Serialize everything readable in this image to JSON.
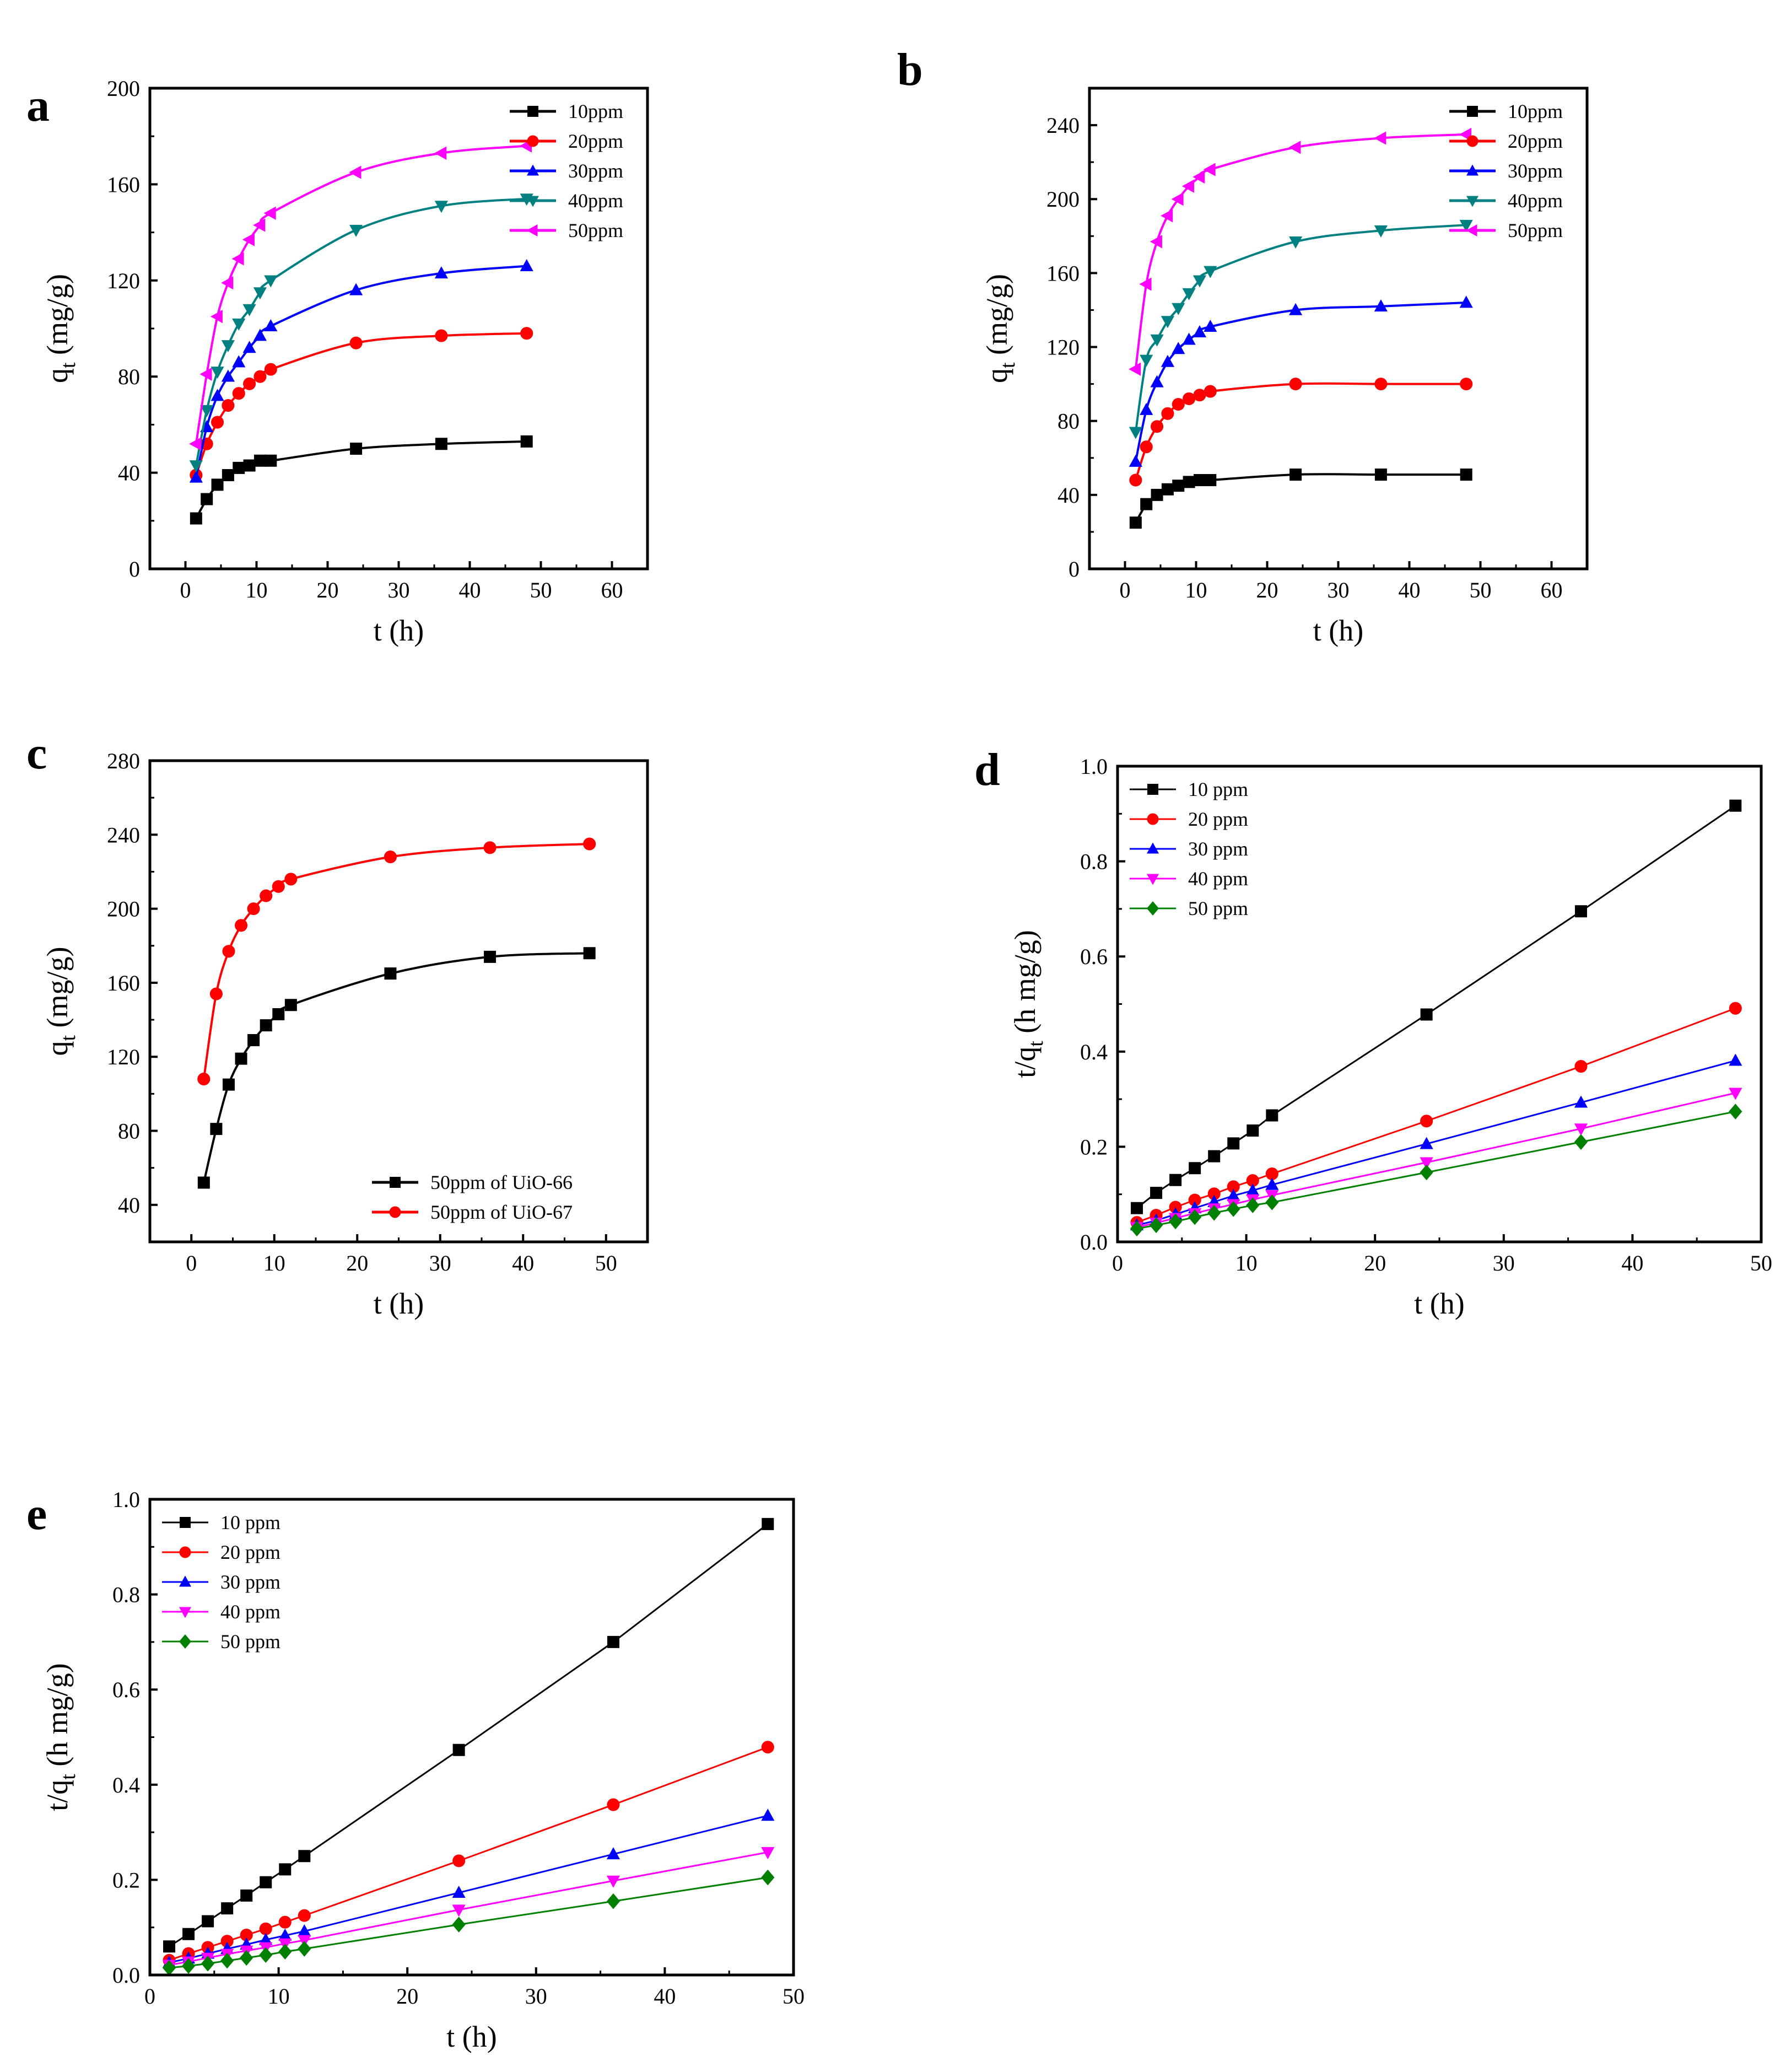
{
  "chart_data": [
    {
      "panel": "a",
      "type": "line",
      "smooth": true,
      "xlabel": "t (h)",
      "ylabel_main": "q",
      "ylabel_sub": "t",
      "ylabel_unit": " (mg/g)",
      "xlim": [
        -5,
        65
      ],
      "ylim": [
        0,
        200
      ],
      "xticks": [
        0,
        10,
        20,
        30,
        40,
        50,
        60
      ],
      "yticks": [
        0,
        40,
        80,
        120,
        160,
        200
      ],
      "legend_position": "top-right",
      "x": [
        1.5,
        3,
        4.5,
        6,
        7.5,
        9,
        10.5,
        12,
        24,
        36,
        48
      ],
      "series": [
        {
          "name": "10ppm",
          "color": "#000000",
          "marker": "square",
          "values": [
            21,
            29,
            35,
            39,
            42,
            43,
            45,
            45,
            50,
            52,
            53
          ]
        },
        {
          "name": "20ppm",
          "color": "#ff0000",
          "marker": "circle",
          "values": [
            39,
            52,
            61,
            68,
            73,
            77,
            80,
            83,
            94,
            97,
            98
          ]
        },
        {
          "name": "30ppm",
          "color": "#0000ff",
          "marker": "triangle-up",
          "values": [
            38,
            59,
            72,
            80,
            86,
            92,
            97,
            101,
            116,
            123,
            126
          ]
        },
        {
          "name": "40ppm",
          "color": "#008080",
          "marker": "triangle-down",
          "values": [
            43,
            66,
            82,
            93,
            102,
            108,
            115,
            120,
            141,
            151,
            154
          ]
        },
        {
          "name": "50ppm",
          "color": "#ff00ff",
          "marker": "triangle-left",
          "values": [
            52,
            81,
            105,
            119,
            129,
            137,
            143,
            148,
            165,
            173,
            176
          ]
        }
      ]
    },
    {
      "panel": "b",
      "type": "line",
      "smooth": true,
      "xlabel": "t (h)",
      "ylabel_main": "q",
      "ylabel_sub": "t",
      "ylabel_unit": " (mg/g)",
      "xlim": [
        -5,
        65
      ],
      "ylim": [
        0,
        260
      ],
      "xticks": [
        0,
        10,
        20,
        30,
        40,
        50,
        60
      ],
      "yticks": [
        0,
        40,
        80,
        120,
        160,
        200,
        240
      ],
      "legend_position": "top-right",
      "x": [
        1.5,
        3,
        4.5,
        6,
        7.5,
        9,
        10.5,
        12,
        24,
        36,
        48
      ],
      "series": [
        {
          "name": "10ppm",
          "color": "#000000",
          "marker": "square",
          "values": [
            25,
            35,
            40,
            43,
            45,
            47,
            48,
            48,
            51,
            51,
            51
          ]
        },
        {
          "name": "20ppm",
          "color": "#ff0000",
          "marker": "circle",
          "values": [
            48,
            66,
            77,
            84,
            89,
            92,
            94,
            96,
            100,
            100,
            100
          ]
        },
        {
          "name": "30ppm",
          "color": "#0000ff",
          "marker": "triangle-up",
          "values": [
            58,
            86,
            101,
            112,
            119,
            124,
            128,
            131,
            140,
            142,
            144
          ]
        },
        {
          "name": "40ppm",
          "color": "#008080",
          "marker": "triangle-down",
          "values": [
            74,
            113,
            124,
            134,
            141,
            149,
            156,
            161,
            177,
            183,
            186
          ]
        },
        {
          "name": "50ppm",
          "color": "#ff00ff",
          "marker": "triangle-left",
          "values": [
            108,
            154,
            177,
            191,
            200,
            207,
            212,
            216,
            228,
            233,
            235
          ]
        }
      ]
    },
    {
      "panel": "c",
      "type": "line",
      "smooth": true,
      "xlabel": "t (h)",
      "ylabel_main": "q",
      "ylabel_sub": "t",
      "ylabel_unit": " (mg/g)",
      "xlim": [
        -5,
        55
      ],
      "ylim": [
        20,
        280
      ],
      "xticks": [
        0,
        10,
        20,
        30,
        40,
        50
      ],
      "yticks": [
        40,
        80,
        120,
        160,
        200,
        240,
        280
      ],
      "legend_position": "bottom-right",
      "x": [
        1.5,
        3,
        4.5,
        6,
        7.5,
        9,
        10.5,
        12,
        24,
        36,
        48
      ],
      "series": [
        {
          "name": "50ppm of UiO-66",
          "color": "#000000",
          "marker": "square",
          "values": [
            52,
            81,
            105,
            119,
            129,
            137,
            143,
            148,
            165,
            174,
            176
          ]
        },
        {
          "name": "50ppm of UiO-67",
          "color": "#ff0000",
          "marker": "circle",
          "values": [
            108,
            154,
            177,
            191,
            200,
            207,
            212,
            216,
            228,
            233,
            235
          ]
        }
      ]
    },
    {
      "panel": "d",
      "type": "line",
      "smooth": false,
      "xlabel": "t (h)",
      "ylabel_main": "t/q",
      "ylabel_sub": "t",
      "ylabel_unit": " (h mg/g)",
      "xlim": [
        0,
        50
      ],
      "ylim": [
        0,
        1.0
      ],
      "xticks": [
        0,
        10,
        20,
        30,
        40,
        50
      ],
      "yticks": [
        0.0,
        0.2,
        0.4,
        0.6,
        0.8,
        1.0
      ],
      "yprecision": 1,
      "legend_position": "top-left",
      "x": [
        1.5,
        3,
        4.5,
        6,
        7.5,
        9,
        10.5,
        12,
        24,
        36,
        48
      ],
      "series": [
        {
          "name": "10 ppm",
          "color": "#000000",
          "marker": "square",
          "values": [
            0.071,
            0.103,
            0.13,
            0.155,
            0.18,
            0.207,
            0.234,
            0.266,
            0.478,
            0.695,
            0.917
          ]
        },
        {
          "name": "20 ppm",
          "color": "#ff0000",
          "marker": "circle",
          "values": [
            0.041,
            0.056,
            0.073,
            0.088,
            0.101,
            0.116,
            0.129,
            0.143,
            0.254,
            0.369,
            0.491
          ]
        },
        {
          "name": "30 ppm",
          "color": "#0000ff",
          "marker": "triangle-up",
          "values": [
            0.035,
            0.045,
            0.058,
            0.071,
            0.084,
            0.097,
            0.108,
            0.12,
            0.206,
            0.293,
            0.381
          ]
        },
        {
          "name": "40 ppm",
          "color": "#ff00ff",
          "marker": "triangle-down",
          "values": [
            0.031,
            0.04,
            0.05,
            0.06,
            0.07,
            0.079,
            0.089,
            0.098,
            0.167,
            0.238,
            0.313
          ]
        },
        {
          "name": "50 ppm",
          "color": "#008000",
          "marker": "diamond",
          "values": [
            0.028,
            0.035,
            0.043,
            0.052,
            0.061,
            0.069,
            0.077,
            0.083,
            0.146,
            0.21,
            0.274
          ]
        }
      ]
    },
    {
      "panel": "e",
      "type": "line",
      "smooth": false,
      "xlabel": "t (h)",
      "ylabel_main": "t/q",
      "ylabel_sub": "t",
      "ylabel_unit": " (h mg/g)",
      "xlim": [
        0,
        50
      ],
      "ylim": [
        0,
        1.0
      ],
      "xticks": [
        0,
        10,
        20,
        30,
        40,
        50
      ],
      "yticks": [
        0.0,
        0.2,
        0.4,
        0.6,
        0.8,
        1.0
      ],
      "yprecision": 1,
      "legend_position": "top-left",
      "x": [
        1.5,
        3,
        4.5,
        6,
        7.5,
        9,
        10.5,
        12,
        24,
        36,
        48
      ],
      "series": [
        {
          "name": "10 ppm",
          "color": "#000000",
          "marker": "square",
          "values": [
            0.06,
            0.086,
            0.113,
            0.14,
            0.167,
            0.195,
            0.222,
            0.25,
            0.473,
            0.7,
            0.948
          ]
        },
        {
          "name": "20 ppm",
          "color": "#ff0000",
          "marker": "circle",
          "values": [
            0.031,
            0.045,
            0.058,
            0.071,
            0.084,
            0.097,
            0.111,
            0.125,
            0.24,
            0.358,
            0.479
          ]
        },
        {
          "name": "30 ppm",
          "color": "#0000ff",
          "marker": "triangle-up",
          "values": [
            0.026,
            0.035,
            0.045,
            0.055,
            0.064,
            0.074,
            0.083,
            0.092,
            0.173,
            0.254,
            0.335
          ]
        },
        {
          "name": "40 ppm",
          "color": "#ff00ff",
          "marker": "triangle-down",
          "values": [
            0.021,
            0.028,
            0.036,
            0.044,
            0.051,
            0.058,
            0.066,
            0.073,
            0.137,
            0.198,
            0.258
          ]
        },
        {
          "name": "50 ppm",
          "color": "#008000",
          "marker": "diamond",
          "values": [
            0.015,
            0.019,
            0.024,
            0.03,
            0.036,
            0.042,
            0.049,
            0.055,
            0.106,
            0.155,
            0.205
          ]
        }
      ]
    }
  ]
}
